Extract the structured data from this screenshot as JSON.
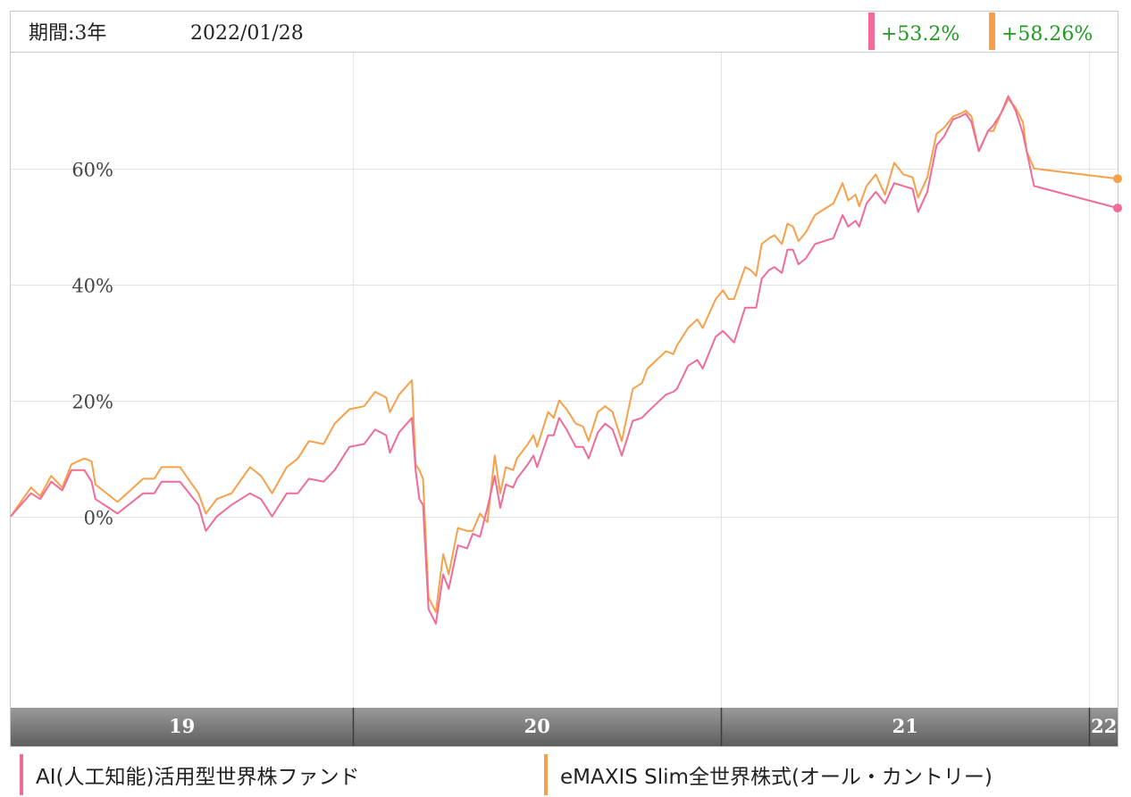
{
  "header": {
    "period": "期間:3年",
    "date": "2022/01/28"
  },
  "returns": [
    {
      "text": "+53.2%",
      "color": "#f06c96"
    },
    {
      "text": "+58.26%",
      "color": "#f7a04a"
    }
  ],
  "return_text_color": "#1e9a1e",
  "legend": [
    {
      "label": "AI(人工知能)活用型世界株ファンド",
      "color": "#f06c96"
    },
    {
      "label": "eMAXIS Slim全世界株式(オール・カントリー)",
      "color": "#f7a04a"
    }
  ],
  "chart_data": {
    "type": "line",
    "x_unit": "year",
    "xlim": [
      2019.07,
      2022.077
    ],
    "ylim": [
      -33,
      80
    ],
    "y_ticks": [
      0,
      20,
      40,
      60
    ],
    "y_tick_labels": [
      "0%",
      "20%",
      "40%",
      "60%"
    ],
    "year_marks": [
      2020,
      2021,
      2022
    ],
    "band_labels": [
      {
        "label": "19",
        "x": 2019.535
      },
      {
        "label": "20",
        "x": 2020.5
      },
      {
        "label": "21",
        "x": 2021.5
      },
      {
        "label": "22",
        "x": 2022.04
      }
    ],
    "grid": true,
    "series": [
      {
        "name": "AI(人工知能)活用型世界株ファンド",
        "color": "#f06c96",
        "end_label": "+53.2%",
        "points": [
          [
            2019.07,
            0
          ],
          [
            2019.125,
            4
          ],
          [
            2019.15,
            3
          ],
          [
            2019.18,
            6
          ],
          [
            2019.21,
            4.5
          ],
          [
            2019.235,
            8
          ],
          [
            2019.27,
            8
          ],
          [
            2019.29,
            6
          ],
          [
            2019.3,
            3
          ],
          [
            2019.36,
            0.5
          ],
          [
            2019.43,
            4
          ],
          [
            2019.46,
            4
          ],
          [
            2019.48,
            6
          ],
          [
            2019.53,
            6
          ],
          [
            2019.58,
            2
          ],
          [
            2019.59,
            -0.3
          ],
          [
            2019.6,
            -2.5
          ],
          [
            2019.63,
            0
          ],
          [
            2019.67,
            2
          ],
          [
            2019.72,
            4
          ],
          [
            2019.75,
            3
          ],
          [
            2019.78,
            0
          ],
          [
            2019.82,
            4
          ],
          [
            2019.85,
            4
          ],
          [
            2019.88,
            6.5
          ],
          [
            2019.92,
            6
          ],
          [
            2019.95,
            8
          ],
          [
            2019.99,
            12
          ],
          [
            2020.03,
            12.5
          ],
          [
            2020.06,
            15
          ],
          [
            2020.09,
            14
          ],
          [
            2020.1,
            11
          ],
          [
            2020.125,
            14.5
          ],
          [
            2020.16,
            17
          ],
          [
            2020.17,
            8
          ],
          [
            2020.18,
            3
          ],
          [
            2020.19,
            2
          ],
          [
            2020.205,
            -16
          ],
          [
            2020.225,
            -18.5
          ],
          [
            2020.245,
            -10
          ],
          [
            2020.26,
            -12.5
          ],
          [
            2020.285,
            -5
          ],
          [
            2020.31,
            -5.5
          ],
          [
            2020.325,
            -3
          ],
          [
            2020.345,
            -3.5
          ],
          [
            2020.365,
            1.5
          ],
          [
            2020.385,
            7
          ],
          [
            2020.4,
            1.5
          ],
          [
            2020.415,
            5.5
          ],
          [
            2020.435,
            5
          ],
          [
            2020.445,
            6.5
          ],
          [
            2020.475,
            9
          ],
          [
            2020.49,
            10.5
          ],
          [
            2020.5,
            8.5
          ],
          [
            2020.53,
            14
          ],
          [
            2020.545,
            14
          ],
          [
            2020.56,
            17
          ],
          [
            2020.58,
            15
          ],
          [
            2020.605,
            12
          ],
          [
            2020.625,
            12
          ],
          [
            2020.64,
            10
          ],
          [
            2020.665,
            14.5
          ],
          [
            2020.685,
            16
          ],
          [
            2020.705,
            15
          ],
          [
            2020.73,
            10.5
          ],
          [
            2020.76,
            16.5
          ],
          [
            2020.785,
            17
          ],
          [
            2020.8,
            18
          ],
          [
            2020.85,
            21
          ],
          [
            2020.87,
            21.5
          ],
          [
            2020.88,
            22
          ],
          [
            2020.91,
            26
          ],
          [
            2020.935,
            27
          ],
          [
            2020.95,
            25.5
          ],
          [
            2020.985,
            31
          ],
          [
            2021.005,
            32
          ],
          [
            2021.02,
            31
          ],
          [
            2021.035,
            30
          ],
          [
            2021.065,
            36
          ],
          [
            2021.08,
            36
          ],
          [
            2021.095,
            36
          ],
          [
            2021.11,
            41
          ],
          [
            2021.13,
            42.5
          ],
          [
            2021.145,
            43
          ],
          [
            2021.165,
            42
          ],
          [
            2021.18,
            46
          ],
          [
            2021.195,
            46
          ],
          [
            2021.21,
            43.5
          ],
          [
            2021.23,
            44.5
          ],
          [
            2021.255,
            47
          ],
          [
            2021.28,
            47.5
          ],
          [
            2021.305,
            48
          ],
          [
            2021.33,
            52
          ],
          [
            2021.345,
            50
          ],
          [
            2021.365,
            51
          ],
          [
            2021.375,
            50
          ],
          [
            2021.395,
            54
          ],
          [
            2021.42,
            56
          ],
          [
            2021.445,
            54
          ],
          [
            2021.47,
            57.5
          ],
          [
            2021.495,
            57
          ],
          [
            2021.52,
            56.5
          ],
          [
            2021.535,
            52.5
          ],
          [
            2021.56,
            56
          ],
          [
            2021.585,
            64
          ],
          [
            2021.605,
            65.5
          ],
          [
            2021.63,
            68.5
          ],
          [
            2021.65,
            69
          ],
          [
            2021.665,
            69.5
          ],
          [
            2021.68,
            68
          ],
          [
            2021.7,
            63
          ],
          [
            2021.725,
            66.5
          ],
          [
            2021.74,
            67.5
          ],
          [
            2021.76,
            69.5
          ],
          [
            2021.78,
            72.5
          ],
          [
            2021.8,
            70
          ],
          [
            2021.82,
            66
          ],
          [
            2021.83,
            63
          ],
          [
            2021.85,
            57
          ],
          [
            2022.077,
            53.2
          ]
        ]
      },
      {
        "name": "eMAXIS Slim全世界株式(オール・カントリー)",
        "color": "#f7a04a",
        "end_label": "+58.26%",
        "points": [
          [
            2019.07,
            0
          ],
          [
            2019.125,
            5
          ],
          [
            2019.15,
            3.5
          ],
          [
            2019.18,
            7
          ],
          [
            2019.21,
            5
          ],
          [
            2019.235,
            9
          ],
          [
            2019.27,
            10
          ],
          [
            2019.29,
            9.5
          ],
          [
            2019.3,
            5.5
          ],
          [
            2019.36,
            2.5
          ],
          [
            2019.43,
            6.5
          ],
          [
            2019.46,
            6.5
          ],
          [
            2019.48,
            8.5
          ],
          [
            2019.53,
            8.5
          ],
          [
            2019.58,
            4
          ],
          [
            2019.6,
            0.5
          ],
          [
            2019.63,
            3
          ],
          [
            2019.67,
            4
          ],
          [
            2019.72,
            8.5
          ],
          [
            2019.75,
            7
          ],
          [
            2019.78,
            4
          ],
          [
            2019.82,
            8.5
          ],
          [
            2019.85,
            10
          ],
          [
            2019.88,
            13
          ],
          [
            2019.92,
            12.5
          ],
          [
            2019.95,
            16
          ],
          [
            2019.99,
            18.5
          ],
          [
            2020.03,
            19
          ],
          [
            2020.06,
            21.5
          ],
          [
            2020.09,
            20.5
          ],
          [
            2020.1,
            18
          ],
          [
            2020.125,
            21
          ],
          [
            2020.16,
            23.5
          ],
          [
            2020.17,
            9
          ],
          [
            2020.18,
            8
          ],
          [
            2020.19,
            6.5
          ],
          [
            2020.205,
            -14
          ],
          [
            2020.225,
            -16.5
          ],
          [
            2020.245,
            -6.5
          ],
          [
            2020.26,
            -10
          ],
          [
            2020.285,
            -2
          ],
          [
            2020.31,
            -2.5
          ],
          [
            2020.325,
            -2.5
          ],
          [
            2020.345,
            0.5
          ],
          [
            2020.365,
            -1
          ],
          [
            2020.385,
            10.5
          ],
          [
            2020.4,
            4
          ],
          [
            2020.415,
            8.5
          ],
          [
            2020.435,
            8
          ],
          [
            2020.445,
            10
          ],
          [
            2020.475,
            12.5
          ],
          [
            2020.49,
            14
          ],
          [
            2020.5,
            12
          ],
          [
            2020.53,
            18
          ],
          [
            2020.545,
            17
          ],
          [
            2020.56,
            20
          ],
          [
            2020.58,
            18.5
          ],
          [
            2020.605,
            16
          ],
          [
            2020.625,
            15.5
          ],
          [
            2020.64,
            13
          ],
          [
            2020.665,
            18
          ],
          [
            2020.685,
            19
          ],
          [
            2020.705,
            18
          ],
          [
            2020.73,
            13
          ],
          [
            2020.76,
            22
          ],
          [
            2020.785,
            23
          ],
          [
            2020.8,
            25.5
          ],
          [
            2020.85,
            28.5
          ],
          [
            2020.87,
            28
          ],
          [
            2020.88,
            29.5
          ],
          [
            2020.91,
            32.5
          ],
          [
            2020.935,
            34
          ],
          [
            2020.95,
            32.5
          ],
          [
            2020.985,
            37.5
          ],
          [
            2021.005,
            39
          ],
          [
            2021.02,
            37.5
          ],
          [
            2021.035,
            37.5
          ],
          [
            2021.065,
            43
          ],
          [
            2021.08,
            42.5
          ],
          [
            2021.095,
            41.5
          ],
          [
            2021.11,
            47
          ],
          [
            2021.13,
            48
          ],
          [
            2021.145,
            48.5
          ],
          [
            2021.165,
            47
          ],
          [
            2021.18,
            50.5
          ],
          [
            2021.195,
            50
          ],
          [
            2021.21,
            47.5
          ],
          [
            2021.23,
            49
          ],
          [
            2021.255,
            52
          ],
          [
            2021.28,
            53
          ],
          [
            2021.305,
            54
          ],
          [
            2021.33,
            57.5
          ],
          [
            2021.345,
            54.5
          ],
          [
            2021.365,
            55.5
          ],
          [
            2021.375,
            53.5
          ],
          [
            2021.395,
            57
          ],
          [
            2021.42,
            59
          ],
          [
            2021.445,
            55.5
          ],
          [
            2021.47,
            61
          ],
          [
            2021.495,
            59
          ],
          [
            2021.52,
            58.5
          ],
          [
            2021.535,
            55
          ],
          [
            2021.56,
            58.5
          ],
          [
            2021.585,
            66
          ],
          [
            2021.605,
            67
          ],
          [
            2021.63,
            69
          ],
          [
            2021.65,
            69.5
          ],
          [
            2021.665,
            70
          ],
          [
            2021.68,
            69
          ],
          [
            2021.7,
            63
          ],
          [
            2021.725,
            66.5
          ],
          [
            2021.74,
            66.5
          ],
          [
            2021.76,
            69.5
          ],
          [
            2021.78,
            72
          ],
          [
            2021.8,
            70.5
          ],
          [
            2021.82,
            68
          ],
          [
            2021.83,
            63
          ],
          [
            2021.85,
            60
          ],
          [
            2022.077,
            58.26
          ]
        ]
      }
    ]
  }
}
